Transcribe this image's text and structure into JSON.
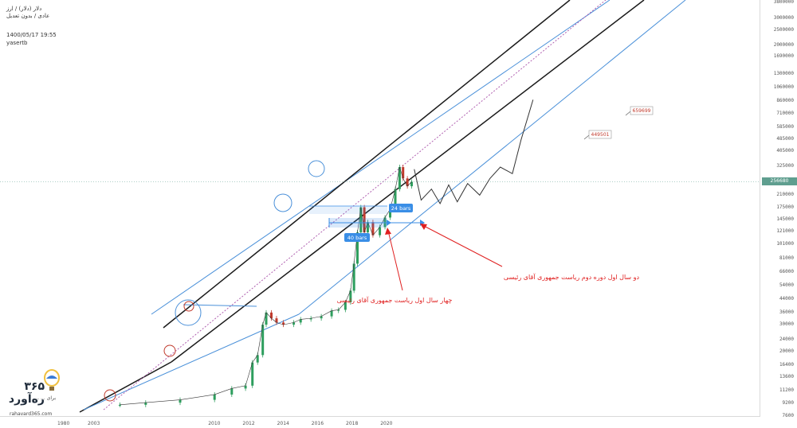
{
  "header": {
    "symbol": "دلار (دلار) / ارز",
    "mode": "عادی / بدون تعدیل",
    "timestamp": "1400/05/17 19:55",
    "author": "yasertb"
  },
  "logo": {
    "brand": "۳۶۵ ره‌آورد",
    "tagline": "برای ... ...",
    "url": "rahavard365.com"
  },
  "colors": {
    "channel_outer": "#4a90d9",
    "channel_inner": "#1a1a1a",
    "median": "#b060b0",
    "bull": "#2e9e5e",
    "bear": "#c0392b",
    "note": "#e02020",
    "measure": "#3a8ee6",
    "price_line": "#5f9e8f"
  },
  "chart_data": {
    "type": "line",
    "scale": "log",
    "y_ticks": [
      3800000,
      3000000,
      2500000,
      2000000,
      1690000,
      1300000,
      1060000,
      860000,
      710000,
      585000,
      485000,
      405000,
      325000,
      256680,
      210000,
      175000,
      145000,
      121000,
      101000,
      81000,
      66000,
      54000,
      44000,
      36000,
      30000,
      24000,
      20000,
      16400,
      13600,
      11200,
      9200,
      7600
    ],
    "x_ticks": [
      "1980",
      "2003",
      "2010",
      "2012",
      "2014",
      "2016",
      "2018",
      "2020"
    ],
    "current_price": "256680",
    "series": [
      {
        "values": [
          {
            "x": 2004.5,
            "y": 9000
          },
          {
            "x": 2006,
            "y": 9300
          },
          {
            "x": 2008,
            "y": 9700
          },
          {
            "x": 2010,
            "y": 10500
          },
          {
            "x": 2011,
            "y": 11500
          },
          {
            "x": 2011.8,
            "y": 12000
          },
          {
            "x": 2012.2,
            "y": 17000
          },
          {
            "x": 2012.5,
            "y": 19000
          },
          {
            "x": 2012.8,
            "y": 30000
          },
          {
            "x": 2013.0,
            "y": 36000
          },
          {
            "x": 2013.3,
            "y": 33000
          },
          {
            "x": 2013.6,
            "y": 31000
          },
          {
            "x": 2014,
            "y": 30000
          },
          {
            "x": 2014.6,
            "y": 31000
          },
          {
            "x": 2015,
            "y": 32500
          },
          {
            "x": 2015.6,
            "y": 33000
          },
          {
            "x": 2016.2,
            "y": 34000
          },
          {
            "x": 2016.8,
            "y": 37000
          },
          {
            "x": 2017.2,
            "y": 37500
          },
          {
            "x": 2017.6,
            "y": 42000
          },
          {
            "x": 2017.9,
            "y": 50000
          },
          {
            "x": 2018.1,
            "y": 75000
          },
          {
            "x": 2018.3,
            "y": 120000
          },
          {
            "x": 2018.5,
            "y": 175000
          },
          {
            "x": 2018.7,
            "y": 120000
          },
          {
            "x": 2018.9,
            "y": 140000
          },
          {
            "x": 2019.2,
            "y": 115000
          },
          {
            "x": 2019.6,
            "y": 130000
          },
          {
            "x": 2019.9,
            "y": 150000
          },
          {
            "x": 2020.2,
            "y": 170000
          },
          {
            "x": 2020.5,
            "y": 230000
          },
          {
            "x": 2020.75,
            "y": 320000
          },
          {
            "x": 2020.95,
            "y": 270000
          },
          {
            "x": 2021.2,
            "y": 240000
          },
          {
            "x": 2021.45,
            "y": 256680
          }
        ]
      }
    ],
    "projection": [
      {
        "x": 2021.6,
        "y": 310000
      },
      {
        "x": 2022.0,
        "y": 195000
      },
      {
        "x": 2022.6,
        "y": 230000
      },
      {
        "x": 2023.1,
        "y": 185000
      },
      {
        "x": 2023.6,
        "y": 245000
      },
      {
        "x": 2024.1,
        "y": 190000
      },
      {
        "x": 2024.7,
        "y": 250000
      },
      {
        "x": 2025.4,
        "y": 210000
      },
      {
        "x": 2026.0,
        "y": 270000
      },
      {
        "x": 2026.6,
        "y": 320000
      },
      {
        "x": 2027.3,
        "y": 290000
      },
      {
        "x": 2027.8,
        "y": 480000
      },
      {
        "x": 2028.5,
        "y": 880000
      }
    ],
    "targets": [
      "449501",
      "659699"
    ],
    "bars_24_label": "24 bars",
    "bars_40_label": "40 bars",
    "annotations": [
      "دو سال اول  دوره دوم ریاست جمهوری آقای رئیسی",
      "چهار سال اول ریاست جمهوری آقای رئیسی"
    ],
    "grid": false
  }
}
